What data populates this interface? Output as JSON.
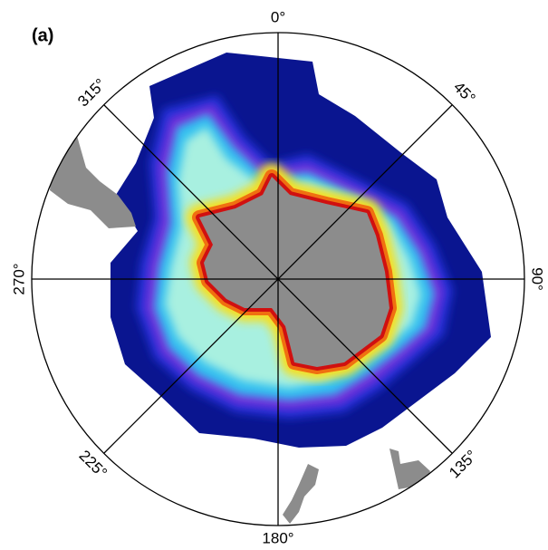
{
  "panel_label": "(a)",
  "longitude_labels": [
    "0°",
    "45°",
    "90°",
    "135°",
    "180°",
    "225°",
    "270°",
    "315°"
  ]
}
